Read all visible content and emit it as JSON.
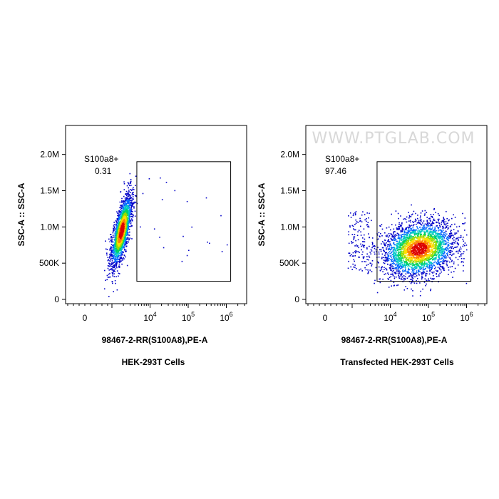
{
  "watermark": "WWW.PTGLAB.COM",
  "colors": {
    "density_scale": [
      "#0000c8",
      "#0064ff",
      "#00c8c8",
      "#00d264",
      "#96dc00",
      "#ffdc00",
      "#ff8200",
      "#dc0000"
    ],
    "axis": "#000000",
    "gate": "#000000"
  },
  "chart_data": [
    {
      "type": "scatter",
      "subtype": "flow-cytometry density dot plot",
      "caption": "HEK-293T Cells",
      "xlabel": "98467-2-RR(S100A8),PE-A",
      "ylabel": "SSC-A :: SSC-A",
      "x_scale": "biexponential",
      "y_scale": "linear",
      "ylim": [
        0,
        2400000
      ],
      "y_ticks": [
        {
          "value": 0,
          "label": "0"
        },
        {
          "value": 500000,
          "label": "500K"
        },
        {
          "value": 1000000,
          "label": "1.0M"
        },
        {
          "value": 1500000,
          "label": "1.5M"
        },
        {
          "value": 2000000,
          "label": "2.0M"
        }
      ],
      "x_ticks": [
        {
          "value": 0,
          "base": "0",
          "exp": ""
        },
        {
          "value": 10000,
          "base": "10",
          "exp": "4"
        },
        {
          "value": 100000,
          "base": "10",
          "exp": "5"
        },
        {
          "value": 1000000,
          "base": "10",
          "exp": "6"
        }
      ],
      "gate": {
        "name": "S100a8+",
        "percent": "0.31",
        "x_range": [
          4500,
          1300000
        ],
        "y_range": [
          250000,
          1900000
        ]
      },
      "population": {
        "x_center": 2500,
        "y_center": 950000,
        "x_spread": "narrow",
        "y_spread": [
          450000,
          1650000
        ],
        "shape": "diagonal ellipse"
      }
    },
    {
      "type": "scatter",
      "subtype": "flow-cytometry density dot plot",
      "caption": "Transfected HEK-293T Cells",
      "xlabel": "98467-2-RR(S100A8),PE-A",
      "ylabel": "SSC-A :: SSC-A",
      "x_scale": "biexponential",
      "y_scale": "linear",
      "ylim": [
        0,
        2400000
      ],
      "y_ticks": [
        {
          "value": 0,
          "label": "0"
        },
        {
          "value": 500000,
          "label": "500K"
        },
        {
          "value": 1000000,
          "label": "1.0M"
        },
        {
          "value": 1500000,
          "label": "1.5M"
        },
        {
          "value": 2000000,
          "label": "2.0M"
        }
      ],
      "x_ticks": [
        {
          "value": 0,
          "base": "0",
          "exp": ""
        },
        {
          "value": 10000,
          "base": "10",
          "exp": "4"
        },
        {
          "value": 100000,
          "base": "10",
          "exp": "5"
        },
        {
          "value": 1000000,
          "base": "10",
          "exp": "6"
        }
      ],
      "gate": {
        "name": "S100a8+",
        "percent": "97.46",
        "x_range": [
          4500,
          1300000
        ],
        "y_range": [
          250000,
          1900000
        ]
      },
      "population": {
        "x_center": 60000,
        "y_center": 700000,
        "x_spread": "wide",
        "y_spread": [
          400000,
          1300000
        ],
        "shape": "broad cloud"
      }
    }
  ]
}
